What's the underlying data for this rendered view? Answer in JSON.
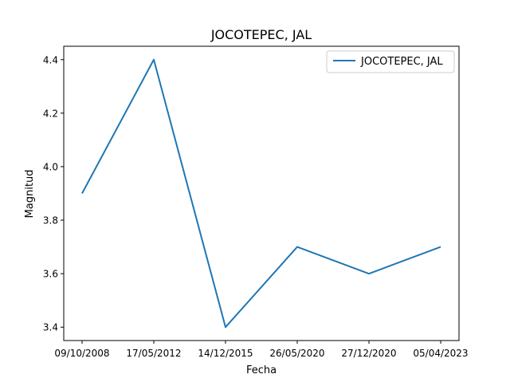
{
  "chart_data": {
    "type": "line",
    "title": "JOCOTEPEC, JAL",
    "xlabel": "Fecha",
    "ylabel": "Magnitud",
    "categories": [
      "09/10/2008",
      "17/05/2012",
      "14/12/2015",
      "26/05/2020",
      "27/12/2020",
      "05/04/2023"
    ],
    "series": [
      {
        "name": "JOCOTEPEC, JAL",
        "values": [
          3.9,
          4.4,
          3.4,
          3.7,
          3.6,
          3.7
        ],
        "color": "#1f77b4"
      }
    ],
    "yticks": [
      "3.4",
      "3.6",
      "3.8",
      "4.0",
      "4.2",
      "4.4"
    ],
    "ylim": [
      3.35,
      4.45
    ],
    "grid": false,
    "legend_position": "top-right"
  }
}
